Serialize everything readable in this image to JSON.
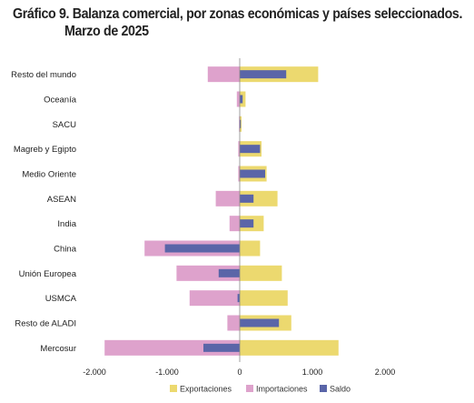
{
  "title_line1": "Gráfico 9. Balanza comercial, por zonas económicas y países seleccionados.",
  "title_line2": "Marzo de 2025",
  "colors": {
    "exportaciones": "#ecd96f",
    "importaciones": "#dea2cc",
    "saldo": "#5a65a8",
    "axis": "#888888"
  },
  "chart_data": {
    "type": "bar",
    "orientation": "horizontal",
    "categories": [
      "Resto del mundo",
      "Oceanía",
      "SACU",
      "Magreb y Egipto",
      "Medio Oriente",
      "ASEAN",
      "India",
      "China",
      "Unión Europea",
      "USMCA",
      "Resto de ALADI",
      "Mercosur"
    ],
    "series": [
      {
        "name": "Exportaciones",
        "values": [
          1080,
          80,
          25,
          300,
          370,
          520,
          330,
          280,
          580,
          660,
          710,
          1360
        ]
      },
      {
        "name": "Importaciones",
        "values": [
          -440,
          -40,
          -10,
          -20,
          -20,
          -330,
          -140,
          -1310,
          -870,
          -690,
          -170,
          -1860
        ]
      },
      {
        "name": "Saldo",
        "values": [
          640,
          40,
          15,
          280,
          350,
          190,
          190,
          -1030,
          -290,
          -30,
          540,
          -500
        ]
      }
    ],
    "xlim": [
      -2000,
      2000
    ],
    "xticks": [
      -2000,
      -1000,
      0,
      1000,
      2000
    ],
    "xtick_labels": [
      "-2.000",
      "-1.000",
      "0",
      "1.000",
      "2.000"
    ],
    "legend_position": "bottom",
    "grid": false
  }
}
